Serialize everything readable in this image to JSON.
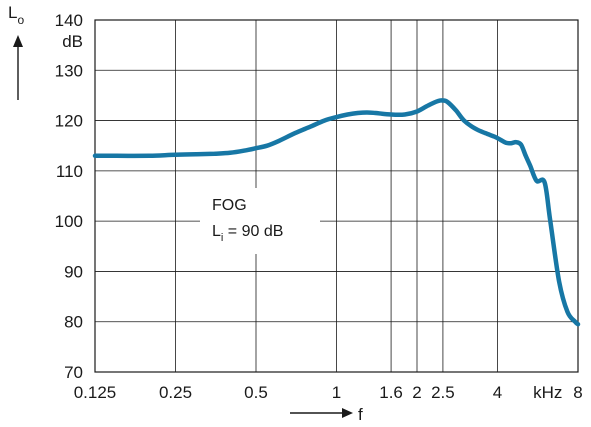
{
  "chart_data": {
    "type": "line",
    "x_scale": "log",
    "y_axis": {
      "label_main": "L",
      "label_sub": "o",
      "unit": "dB",
      "ylim": [
        70,
        140
      ],
      "ticks": [
        70,
        80,
        90,
        100,
        110,
        120,
        130,
        140
      ]
    },
    "x_axis": {
      "label": "f",
      "unit": "kHz",
      "xlim": [
        0.125,
        8
      ],
      "tick_labels": [
        "0.125",
        "0.25",
        "0.5",
        "1",
        "1.6",
        "2",
        "2.5",
        "4",
        "8"
      ],
      "tick_values": [
        0.125,
        0.25,
        0.5,
        1,
        1.6,
        2,
        2.5,
        4,
        8
      ]
    },
    "grid": true,
    "line_color": "#1777a5",
    "annotation": {
      "title": "FOG",
      "label_main": "L",
      "label_sub": "i",
      "label_rest": " = 90 dB"
    },
    "series": [
      {
        "x": [
          0.125,
          0.15,
          0.2,
          0.25,
          0.3,
          0.35,
          0.4,
          0.45,
          0.5,
          0.55,
          0.6,
          0.7,
          0.8,
          0.9,
          1.0,
          1.1,
          1.2,
          1.3,
          1.4,
          1.6,
          1.8,
          2.0,
          2.2,
          2.4,
          2.5,
          2.6,
          2.8,
          3.0,
          3.3,
          3.6,
          3.9,
          4.1,
          4.3,
          4.5,
          4.7,
          4.9,
          5.1,
          5.3,
          5.6,
          6.0,
          6.3,
          6.8,
          7.3,
          7.8,
          8.0
        ],
        "y": [
          113,
          113,
          113,
          113.2,
          113.3,
          113.4,
          113.6,
          114,
          114.5,
          115,
          115.8,
          117.5,
          118.8,
          120,
          120.7,
          121.2,
          121.5,
          121.6,
          121.5,
          121.2,
          121.2,
          121.8,
          123,
          123.9,
          124,
          123.7,
          122,
          120,
          118.4,
          117.5,
          116.8,
          116.2,
          115.6,
          115.5,
          115.7,
          115.2,
          113,
          111,
          108,
          107.7,
          100,
          88,
          82,
          80,
          79.5
        ]
      }
    ]
  }
}
